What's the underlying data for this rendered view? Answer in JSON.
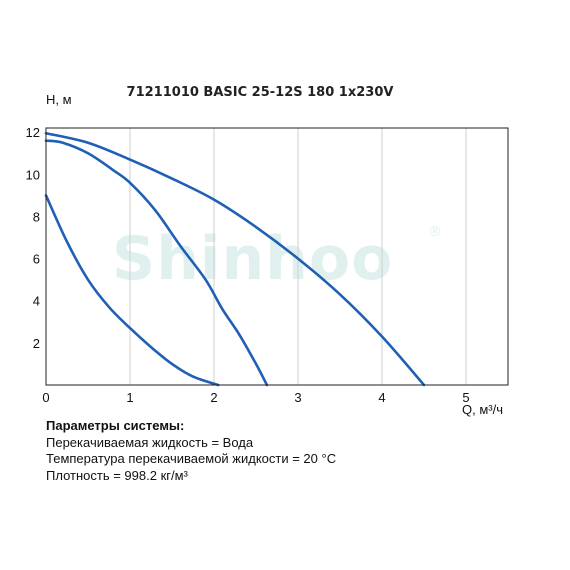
{
  "chart_data": {
    "type": "line",
    "title": "71211010 BASIC 25-12S 180 1x230V",
    "xlabel": "Q, м³/ч",
    "ylabel": "H, м",
    "xlim": [
      0,
      5.5
    ],
    "ylim": [
      0,
      12.2
    ],
    "xticks": [
      0,
      1,
      2,
      3,
      4,
      5
    ],
    "yticks": [
      2,
      4,
      6,
      8,
      10,
      12
    ],
    "grid": "vertical",
    "watermark": "Shinhoo",
    "series": [
      {
        "color": "#1f5fb5",
        "points": [
          [
            0,
            9.0
          ],
          [
            0.25,
            6.8
          ],
          [
            0.5,
            5.0
          ],
          [
            0.75,
            3.7
          ],
          [
            1.0,
            2.7
          ],
          [
            1.25,
            1.8
          ],
          [
            1.5,
            1.0
          ],
          [
            1.75,
            0.4
          ],
          [
            2.05,
            0.0
          ]
        ]
      },
      {
        "color": "#1f5fb5",
        "points": [
          [
            0,
            11.6
          ],
          [
            0.2,
            11.5
          ],
          [
            0.5,
            11.0
          ],
          [
            0.8,
            10.2
          ],
          [
            1.0,
            9.6
          ],
          [
            1.3,
            8.3
          ],
          [
            1.6,
            6.6
          ],
          [
            1.9,
            5.0
          ],
          [
            2.1,
            3.6
          ],
          [
            2.3,
            2.4
          ],
          [
            2.5,
            1.0
          ],
          [
            2.63,
            0.0
          ]
        ]
      },
      {
        "color": "#1f5fb5",
        "points": [
          [
            0,
            11.95
          ],
          [
            0.5,
            11.5
          ],
          [
            1.0,
            10.7
          ],
          [
            1.5,
            9.8
          ],
          [
            2.0,
            8.8
          ],
          [
            2.5,
            7.5
          ],
          [
            3.0,
            6.0
          ],
          [
            3.5,
            4.3
          ],
          [
            4.0,
            2.3
          ],
          [
            4.5,
            0.0
          ]
        ]
      }
    ]
  },
  "parameters": {
    "title": "Параметры системы:",
    "lines": [
      "Перекачиваемая жидкость = Вода",
      "Температура перекачиваемой жидкости = 20 °C",
      "Плотность = 998.2 кг/м³"
    ]
  }
}
